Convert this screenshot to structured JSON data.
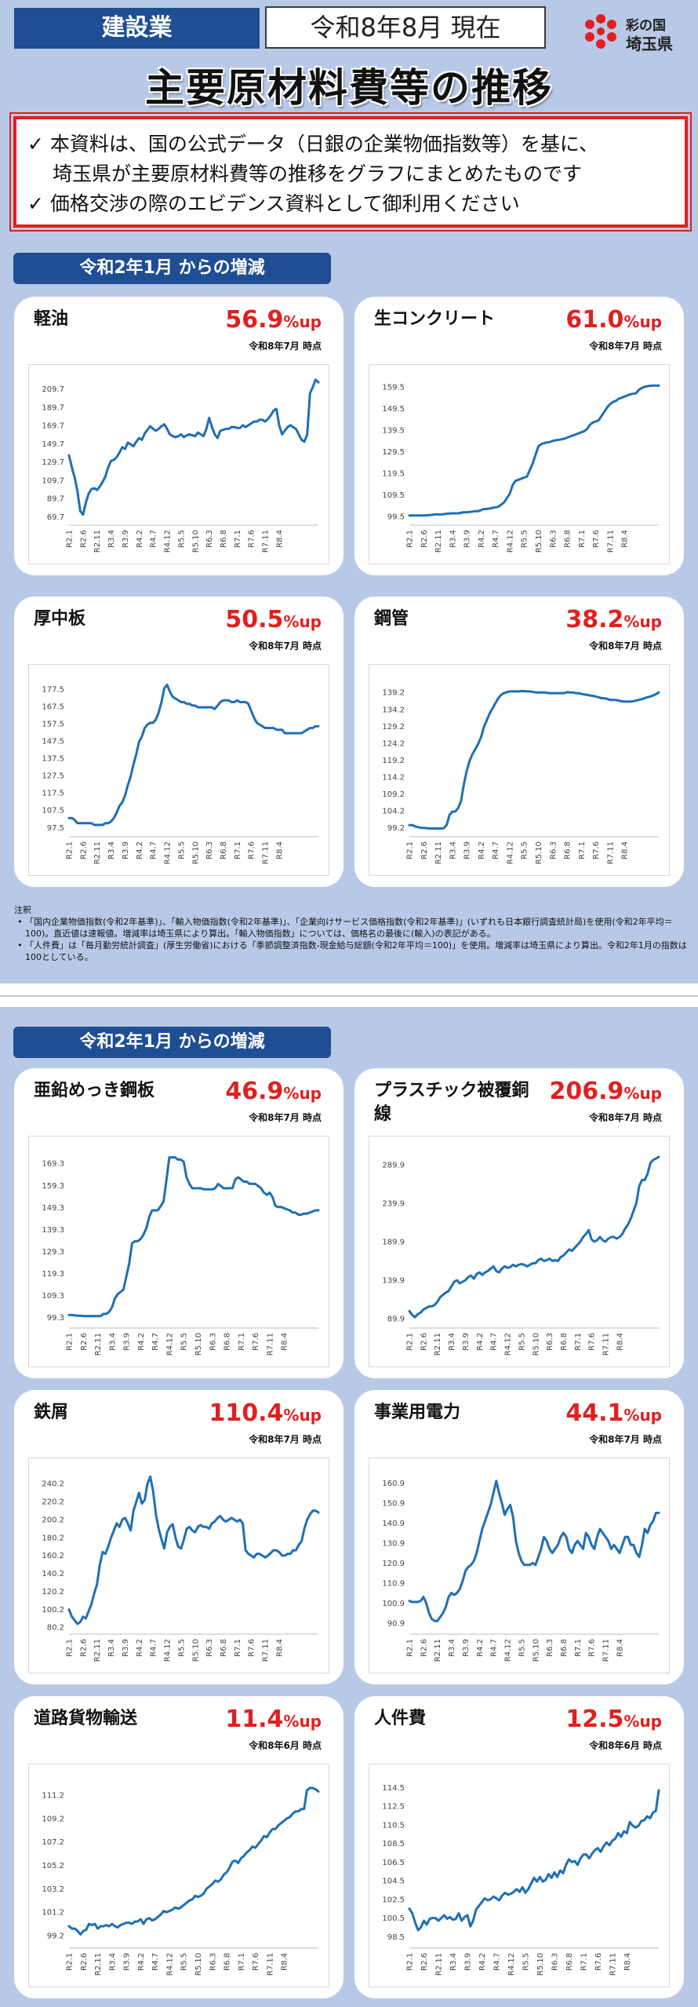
{
  "header": {
    "category": "建設業",
    "date": "令和8年8月 現在",
    "logo_line1": "彩の国",
    "logo_line2": "埼玉県",
    "title": "主要原材料費等の推移"
  },
  "notice": {
    "line1": "✓ 本資料は、国の公式データ（日銀の企業物価指数等）を基に、",
    "line2": "埼玉県が主要原材料費等の推移をグラフにまとめたものです",
    "line3": "✓ 価格交渉の際のエビデンス資料として御利用ください"
  },
  "section_label": "令和2年1月 からの増減",
  "section_label_2": "令和2年1月 からの増減",
  "notes": {
    "heading": "注釈",
    "item1": "「国内企業物価指数(令和2年基準)」、「輸入物価指数(令和2年基準)」、「企業向けサービス価格指数(令和2年基準)」(いずれも日本銀行調査統計局)を使用(令和2年平均＝100)。直近値は速報値。増減率は埼玉県により算出。「輸入物価指数」については、価格名の最後に(輸入)の表記がある。",
    "item2": "「人件費」は「毎月勤労統計調査」(厚生労働省)における「季節調整済指数-現金給与総額(令和2年平均＝100)」を使用。増減率は埼玉県により算出。令和2年1月の指数は100としている。"
  },
  "colors": {
    "accent_blue": "#1f4e92",
    "line": "#1f6fb5",
    "pct_red": "#e02020",
    "page_bg": "#b8c9e8"
  },
  "cards": [
    {
      "title": "軽油",
      "pct": "56.9",
      "unit": "%up",
      "asof": "令和8年7月 時点"
    },
    {
      "title": "生コンクリート",
      "pct": "61.0",
      "unit": "%up",
      "asof": "令和8年7月 時点"
    },
    {
      "title": "厚中板",
      "pct": "50.5",
      "unit": "%up",
      "asof": "令和8年7月 時点"
    },
    {
      "title": "鋼管",
      "pct": "38.2",
      "unit": "%up",
      "asof": "令和8年7月 時点"
    },
    {
      "title": "亜鉛めっき鋼板",
      "pct": "46.9",
      "unit": "%up",
      "asof": "令和8年7月 時点"
    },
    {
      "title": "プラスチック被覆銅線",
      "pct": "206.9",
      "unit": "%up",
      "asof": "令和8年7月 時点"
    },
    {
      "title": "鉄屑",
      "pct": "110.4",
      "unit": "%up",
      "asof": "令和8年7月 時点"
    },
    {
      "title": "事業用電力",
      "pct": "44.1",
      "unit": "%up",
      "asof": "令和8年7月 時点"
    },
    {
      "title": "道路貨物輸送",
      "pct": "11.4",
      "unit": "%up",
      "asof": "令和8年6月 時点"
    },
    {
      "title": "人件費",
      "pct": "12.5",
      "unit": "%up",
      "asof": "令和8年6月 時点"
    }
  ],
  "chart_data": [
    {
      "type": "line",
      "name": "軽油",
      "xticks": [
        "R2.1",
        "R2.6",
        "R2.11",
        "R3.4",
        "R3.9",
        "R4.2",
        "R4.7",
        "R4.12",
        "R5.5",
        "R5.10",
        "R6.3",
        "R6.8",
        "R7.1",
        "R7.6",
        "R7.11",
        "R8.4"
      ],
      "yticks": [
        69.7,
        89.7,
        109.7,
        129.7,
        149.7,
        169.7,
        189.7,
        209.7
      ],
      "ylim": [
        64,
        218
      ],
      "values": [
        137,
        124,
        113,
        98,
        76,
        72,
        85,
        95,
        100,
        101,
        99,
        103,
        108,
        114,
        124,
        131,
        132,
        135,
        140,
        146,
        144,
        151,
        149,
        147,
        152,
        156,
        154,
        161,
        165,
        169,
        166,
        164,
        166,
        169,
        171,
        166,
        160,
        158,
        157,
        158,
        160,
        157,
        159,
        160,
        159,
        158,
        162,
        160,
        158,
        166,
        178,
        168,
        160,
        156,
        164,
        165,
        166,
        166,
        168,
        168,
        167,
        167,
        170,
        168,
        170,
        172,
        174,
        174,
        176,
        176,
        174,
        177,
        181,
        186,
        188,
        170,
        160,
        164,
        168,
        170,
        168,
        166,
        160,
        154,
        152,
        160,
        205,
        212,
        220,
        217
      ]
    },
    {
      "type": "line",
      "name": "生コンクリート",
      "xticks": [
        "R2.1",
        "R2.6",
        "R2.11",
        "R3.4",
        "R3.9",
        "R4.2",
        "R4.7",
        "R4.12",
        "R5.5",
        "R5.10",
        "R6.3",
        "R6.8",
        "R7.1",
        "R7.6",
        "R7.11",
        "R8.4"
      ],
      "yticks": [
        99.5,
        109.5,
        119.5,
        129.5,
        139.5,
        149.5,
        159.5
      ],
      "ylim": [
        97,
        162
      ],
      "values": [
        100,
        100,
        100,
        100,
        100,
        100,
        100,
        100.2,
        100.3,
        100.5,
        100.5,
        100.5,
        100.6,
        100.8,
        100.9,
        101,
        101,
        101,
        101.2,
        101.5,
        101.5,
        101.6,
        101.8,
        102,
        102,
        102.5,
        103,
        103,
        103.2,
        103.5,
        103.8,
        104,
        105,
        106,
        108,
        110,
        114,
        116,
        116.5,
        117,
        117.5,
        118,
        121,
        124,
        128,
        132,
        133,
        133.5,
        133.8,
        134,
        134.5,
        134.8,
        135,
        135.2,
        135.5,
        136,
        136.5,
        137,
        137.5,
        138,
        138.5,
        139,
        140,
        142,
        143,
        143.5,
        144,
        146,
        148,
        150,
        151.5,
        152.5,
        153,
        154,
        154.5,
        155,
        155.5,
        156,
        156.3,
        156.5,
        158,
        159,
        159.5,
        159.8,
        160,
        160.1,
        160.1,
        160.1
      ]
    },
    {
      "type": "line",
      "name": "厚中板",
      "xticks": [
        "R2.1",
        "R2.6",
        "R2.11",
        "R3.4",
        "R3.9",
        "R4.2",
        "R4.7",
        "R4.12",
        "R5.5",
        "R5.10",
        "R6.3",
        "R6.8",
        "R7.1",
        "R7.6",
        "R7.11",
        "R8.4"
      ],
      "yticks": [
        97.5,
        107.5,
        117.5,
        127.5,
        137.5,
        147.5,
        157.5,
        167.5,
        177.5
      ],
      "ylim": [
        94,
        182
      ],
      "values": [
        103,
        103,
        102,
        100,
        100,
        100,
        100,
        100,
        100,
        99,
        99,
        99,
        99,
        100,
        100,
        101,
        103,
        106,
        110,
        112,
        116,
        122,
        127,
        134,
        140,
        147,
        150,
        155,
        157,
        158,
        158,
        160,
        164,
        170,
        178,
        180,
        176,
        173,
        172,
        171,
        170,
        170,
        169,
        169,
        168,
        168,
        167,
        167,
        167,
        167,
        167,
        167,
        166,
        168,
        170,
        171,
        171,
        171,
        170,
        170,
        171,
        170,
        170,
        170,
        169,
        165,
        161,
        158,
        157,
        156,
        155,
        155,
        155,
        155,
        154,
        154,
        154,
        152,
        152,
        152,
        152,
        152,
        152,
        152,
        153,
        154,
        155,
        155,
        156,
        156
      ]
    },
    {
      "type": "line",
      "name": "鋼管",
      "xticks": [
        "R2.1",
        "R2.6",
        "R2.11",
        "R3.4",
        "R3.9",
        "R4.2",
        "R4.7",
        "R4.12",
        "R5.5",
        "R5.10",
        "R6.3",
        "R6.8",
        "R7.1",
        "R7.6",
        "R7.11",
        "R8.4"
      ],
      "yticks": [
        99.2,
        104.2,
        109.2,
        114.2,
        119.2,
        124.2,
        129.2,
        134.2,
        139.2
      ],
      "ylim": [
        97.5,
        142.5
      ],
      "values": [
        100,
        100,
        99.6,
        99.4,
        99.2,
        99.2,
        99.1,
        99,
        99,
        99,
        99,
        99,
        99.1,
        100,
        103,
        104,
        104,
        105,
        107,
        112,
        116,
        119,
        121,
        122.5,
        124,
        126,
        129,
        131,
        133,
        134.5,
        136,
        137.5,
        138.5,
        139,
        139.3,
        139.5,
        139.5,
        139.5,
        139.5,
        139.6,
        139.6,
        139.5,
        139.5,
        139.4,
        139.2,
        139.2,
        139.2,
        139.2,
        139.1,
        139,
        139,
        139,
        139,
        139,
        139,
        139.3,
        139.2,
        139.2,
        139,
        139,
        138.8,
        138.6,
        138.5,
        138.3,
        138.2,
        138,
        137.8,
        137.5,
        137.5,
        137.3,
        137,
        137,
        137,
        136.8,
        136.6,
        136.5,
        136.5,
        136.5,
        136.6,
        136.8,
        137,
        137.2,
        137.5,
        137.8,
        138,
        138.3,
        138.7,
        139.2
      ]
    },
    {
      "type": "line",
      "name": "亜鉛めっき鋼板",
      "xticks": [
        "R2.1",
        "R2.6",
        "R2.11",
        "R3.4",
        "R3.9",
        "R4.2",
        "R4.7",
        "R4.12",
        "R5.5",
        "R5.10",
        "R6.3",
        "R6.8",
        "R7.1",
        "R7.6",
        "R7.11",
        "R8.4"
      ],
      "yticks": [
        99.3,
        109.3,
        119.3,
        129.3,
        139.3,
        149.3,
        159.3,
        169.3
      ],
      "ylim": [
        96,
        174
      ],
      "values": [
        100.5,
        100.5,
        100.3,
        100.2,
        100.2,
        100,
        100,
        100,
        100,
        100,
        100,
        100,
        101,
        101,
        102,
        104,
        108,
        110,
        111,
        112,
        118,
        124,
        133,
        134,
        134,
        135,
        137,
        140,
        145,
        148,
        148,
        148,
        150,
        152,
        162,
        172,
        172,
        172,
        171,
        171,
        170,
        163,
        160,
        158,
        158,
        158,
        158,
        157.5,
        157.5,
        157.5,
        157.5,
        158,
        160,
        159,
        158,
        158,
        158,
        158,
        162,
        163,
        162,
        161,
        161,
        160,
        160,
        160,
        159,
        158,
        156,
        155,
        156,
        154,
        150,
        149.5,
        149.5,
        149,
        148.5,
        148,
        147,
        147,
        146,
        146,
        146.5,
        146.5,
        147,
        147.5,
        148,
        148
      ]
    },
    {
      "type": "line",
      "name": "プラスチック被覆銅線",
      "xticks": [
        "R2.1",
        "R2.6",
        "R2.11",
        "R3.4",
        "R3.9",
        "R4.2",
        "R4.7",
        "R4.12",
        "R5.5",
        "R5.10",
        "R6.3",
        "R6.8",
        "R7.1",
        "R7.6",
        "R7.11",
        "R8.4"
      ],
      "yticks": [
        89.9,
        139.9,
        189.9,
        239.9,
        289.9
      ],
      "ylim": [
        82,
        305
      ],
      "values": [
        100,
        95,
        92,
        96,
        98,
        102,
        104,
        106,
        106,
        108,
        112,
        118,
        121,
        124,
        126,
        132,
        138,
        140,
        136,
        138,
        140,
        144,
        146,
        142,
        148,
        150,
        147,
        150,
        152,
        155,
        158,
        152,
        150,
        155,
        158,
        156,
        157,
        160,
        158,
        160,
        161,
        160,
        158,
        160,
        162,
        162,
        166,
        168,
        165,
        166,
        168,
        165,
        166,
        165,
        170,
        172,
        176,
        180,
        178,
        182,
        186,
        190,
        196,
        200,
        205,
        193,
        190,
        192,
        196,
        192,
        190,
        194,
        196,
        196,
        194,
        196,
        200,
        207,
        212,
        220,
        230,
        240,
        262,
        270,
        270,
        278,
        292,
        296,
        298,
        300
      ]
    },
    {
      "type": "line",
      "name": "鉄屑",
      "xticks": [
        "R2.1",
        "R2.6",
        "R2.11",
        "R3.4",
        "R3.9",
        "R4.2",
        "R4.7",
        "R4.12",
        "R5.5",
        "R5.10",
        "R6.3",
        "R6.8",
        "R7.1",
        "R7.6",
        "R7.11",
        "R8.4"
      ],
      "yticks": [
        80.2,
        100.2,
        120.2,
        140.2,
        160.2,
        180.2,
        200.2,
        220.2,
        240.2
      ],
      "ylim": [
        76,
        250
      ],
      "values": [
        100,
        92,
        88,
        84,
        86,
        92,
        90,
        98,
        106,
        118,
        128,
        150,
        164,
        162,
        170,
        180,
        188,
        196,
        192,
        200,
        202,
        196,
        188,
        210,
        220,
        230,
        218,
        222,
        240,
        248,
        232,
        206,
        190,
        178,
        168,
        186,
        192,
        195,
        180,
        170,
        168,
        178,
        190,
        192,
        188,
        186,
        192,
        194,
        192,
        192,
        190,
        196,
        198,
        202,
        204,
        200,
        198,
        200,
        202,
        200,
        198,
        200,
        196,
        166,
        162,
        160,
        158,
        162,
        162,
        160,
        158,
        160,
        163,
        166,
        166,
        164,
        160,
        160,
        162,
        162,
        166,
        166,
        172,
        176,
        190,
        200,
        206,
        210,
        210,
        208
      ]
    },
    {
      "type": "line",
      "name": "事業用電力",
      "xticks": [
        "R2.1",
        "R2.6",
        "R2.11",
        "R3.4",
        "R3.9",
        "R4.2",
        "R4.7",
        "R4.12",
        "R5.5",
        "R5.10",
        "R6.3",
        "R6.8",
        "R7.1",
        "R7.6",
        "R7.11",
        "R8.4"
      ],
      "yticks": [
        90.9,
        100.9,
        110.9,
        120.9,
        130.9,
        140.9,
        150.9,
        160.9
      ],
      "ylim": [
        87,
        165
      ],
      "values": [
        102,
        101.5,
        101.5,
        101.5,
        102,
        104,
        101,
        96,
        93,
        92,
        92,
        94,
        96,
        99,
        104,
        106,
        105,
        106,
        108,
        112,
        117,
        119,
        120,
        122,
        126,
        132,
        138,
        142,
        146,
        150,
        156,
        162,
        156,
        151,
        145,
        148,
        150,
        144,
        132,
        126,
        122,
        120,
        120,
        120,
        121,
        120,
        124,
        128,
        134,
        132,
        128,
        126,
        128,
        130,
        134,
        136,
        134,
        128,
        126,
        130,
        132,
        130,
        128,
        136,
        134,
        130,
        128,
        134,
        138,
        136,
        134,
        132,
        128,
        130,
        128,
        126,
        130,
        134,
        134,
        130,
        130,
        126,
        124,
        130,
        138,
        136,
        140,
        142,
        146,
        146
      ]
    },
    {
      "type": "line",
      "name": "道路貨物輸送",
      "xticks": [
        "R2.1",
        "R2.6",
        "R2.11",
        "R3.4",
        "R3.9",
        "R4.2",
        "R4.7",
        "R4.12",
        "R5.5",
        "R5.10",
        "R6.3",
        "R6.8",
        "R7.1",
        "R7.6",
        "R7.11",
        "R8.4"
      ],
      "yticks": [
        99.2,
        101.2,
        103.2,
        105.2,
        107.2,
        109.2,
        111.2
      ],
      "ylim": [
        98.4,
        112.4
      ],
      "values": [
        100,
        99.8,
        99.8,
        99.6,
        99.3,
        99.6,
        99.7,
        100.2,
        100.1,
        100.2,
        99.8,
        100,
        100,
        100.1,
        100,
        100.2,
        100,
        99.9,
        100.1,
        100.2,
        100.3,
        100.3,
        100.2,
        100.4,
        100.4,
        100.6,
        100.2,
        100.6,
        100.7,
        100.5,
        100.6,
        100.8,
        101,
        101.3,
        101.2,
        101.3,
        101.4,
        101.6,
        101.5,
        101.6,
        101.8,
        102,
        102.2,
        102.3,
        102.6,
        102.5,
        102.6,
        102.8,
        103.2,
        103.4,
        103.6,
        103.9,
        103.8,
        104,
        104.4,
        104.6,
        105,
        105.5,
        105.6,
        105.4,
        105.8,
        106,
        106.3,
        106.5,
        106.8,
        106.7,
        107,
        107.3,
        107.7,
        107.6,
        108,
        108.3,
        108.3,
        108.6,
        108.8,
        109,
        109.2,
        109.3,
        109.6,
        109.8,
        109.8,
        110,
        110,
        111.6,
        111.8,
        111.8,
        111.7,
        111.5
      ]
    },
    {
      "type": "line",
      "name": "人件費",
      "xticks": [
        "R2.1",
        "R2.6",
        "R2.11",
        "R3.4",
        "R3.9",
        "R4.2",
        "R4.7",
        "R4.12",
        "R5.5",
        "R5.10",
        "R6.3",
        "R6.8",
        "R7.1",
        "R7.6",
        "R7.11",
        "R8.4"
      ],
      "yticks": [
        98.5,
        100.5,
        102.5,
        104.5,
        106.5,
        108.5,
        110.5,
        112.5,
        114.5
      ],
      "ylim": [
        97.6,
        115.2
      ],
      "values": [
        101.5,
        101,
        100,
        99.2,
        99.5,
        100.2,
        99.8,
        100.4,
        100.5,
        100.5,
        100.2,
        100.5,
        100.8,
        100.4,
        100.6,
        100.3,
        100.4,
        101,
        100.2,
        100.6,
        100.8,
        99.6,
        100.2,
        101.4,
        101.8,
        102.2,
        102.6,
        102.4,
        102.5,
        102.8,
        102.6,
        102.4,
        102.9,
        103.2,
        103,
        103.1,
        103.3,
        103.6,
        103.3,
        103.8,
        103.2,
        103.6,
        104.2,
        104.8,
        104.4,
        104.9,
        104.4,
        104.6,
        105.2,
        104.8,
        105.4,
        104.9,
        105.6,
        105.3,
        106.2,
        106.8,
        106.5,
        106.6,
        106.2,
        106.9,
        107.3,
        107.3,
        106.9,
        107.4,
        107.8,
        108,
        107.6,
        108.2,
        108.6,
        108.3,
        108.8,
        109,
        109.6,
        109.2,
        109.8,
        109.6,
        110.8,
        110.4,
        110.2,
        110.4,
        110.9,
        111,
        111.4,
        111.2,
        111.8,
        112,
        114.2
      ]
    }
  ]
}
